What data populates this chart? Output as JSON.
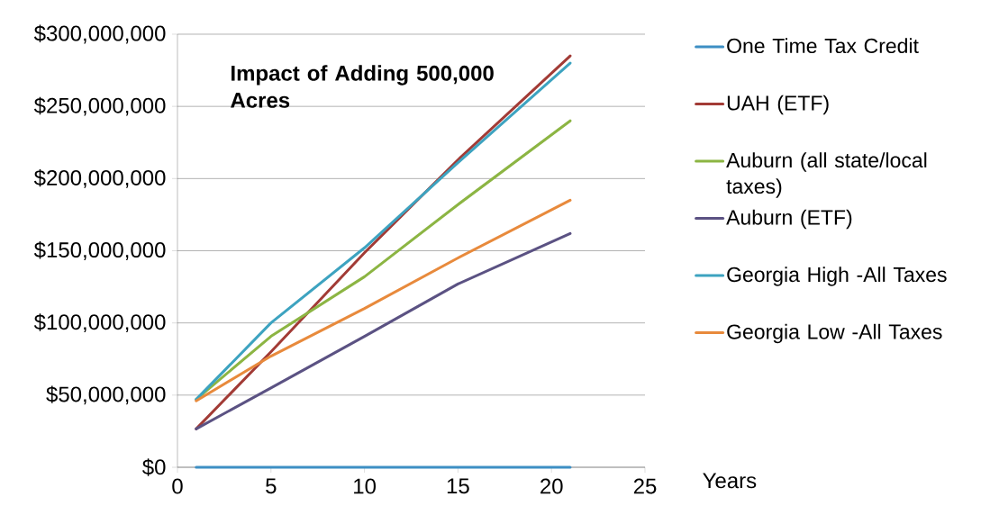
{
  "chart_data": {
    "type": "line",
    "title": "Impact of Adding 500,000 Acres",
    "xlabel": "Years",
    "x": [
      1,
      5,
      10,
      15,
      21
    ],
    "series": [
      {
        "name": "One Time Tax Credit",
        "color": "#3d8fc4",
        "values": [
          0,
          0,
          0,
          0,
          0
        ]
      },
      {
        "name": "UAH (ETF)",
        "color": "#a23b36",
        "values": [
          26600000,
          80000000,
          148600000,
          213000000,
          285000000
        ]
      },
      {
        "name": "Auburn (all state/local taxes)",
        "color": "#8cb543",
        "values": [
          47000000,
          90700000,
          132000000,
          182000000,
          240000000
        ]
      },
      {
        "name": "Auburn (ETF)",
        "color": "#5b5283",
        "values": [
          26600000,
          55000000,
          90700000,
          127000000,
          162000000
        ]
      },
      {
        "name": "Georgia High -All Taxes",
        "color": "#3da3c0",
        "values": [
          47000000,
          100000000,
          152000000,
          211000000,
          280000000
        ]
      },
      {
        "name": "Georgia Low -All Taxes",
        "color": "#e88a3c",
        "values": [
          46000000,
          77000000,
          110000000,
          145000000,
          185000000
        ]
      }
    ],
    "xlim": [
      0,
      25
    ],
    "xticks": [
      0,
      5,
      10,
      15,
      20,
      25
    ],
    "ylim": [
      0,
      300000000
    ],
    "yticks": [
      {
        "value": 0,
        "label": "$0"
      },
      {
        "value": 50000000,
        "label": "$50,000,000"
      },
      {
        "value": 100000000,
        "label": "$100,000,000"
      },
      {
        "value": 150000000,
        "label": "$150,000,000"
      },
      {
        "value": 200000000,
        "label": "$200,000,000"
      },
      {
        "value": 250000000,
        "label": "$250,000,000"
      },
      {
        "value": 300000000,
        "label": "$300,000,000"
      }
    ],
    "grid": "y",
    "legend": "right",
    "marker": "none",
    "line_style": "solid"
  }
}
